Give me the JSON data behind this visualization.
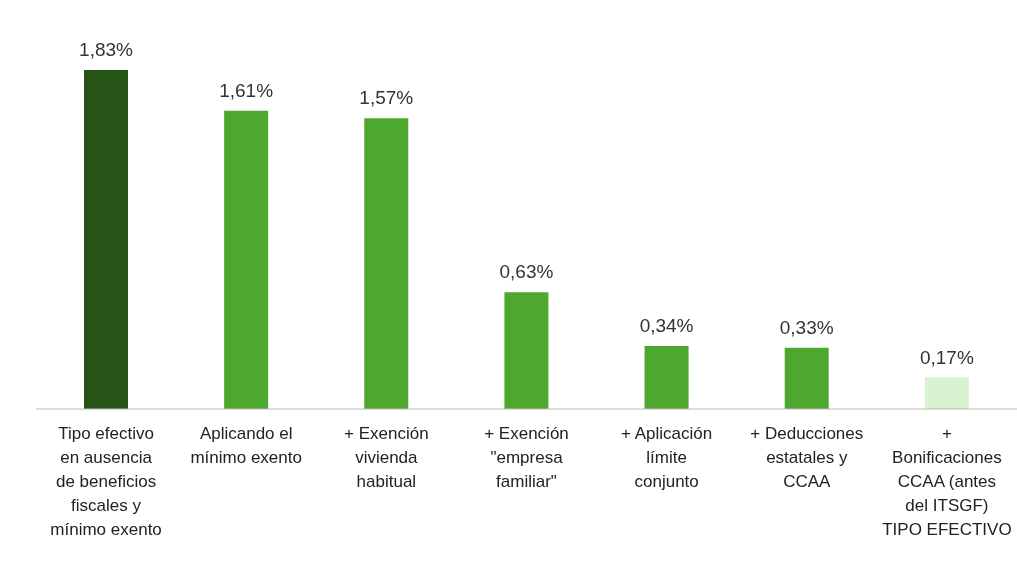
{
  "chart_data": {
    "type": "bar",
    "categories": [
      "Tipo efectivo en ausencia de beneficios fiscales y mínimo exento",
      "Aplicando el mínimo exento",
      "+ Exención vivienda habitual",
      "+ Exención \"empresa familiar\"",
      "+ Aplicación límite conjunto",
      "+ Deducciones estatales y CCAA",
      "+ Bonificaciones CCAA (antes del ITSGF) TIPO EFECTIVO"
    ],
    "values": [
      1.83,
      1.61,
      1.57,
      0.63,
      0.34,
      0.33,
      0.17
    ],
    "colors": [
      "#265418",
      "#4ea72e",
      "#4ea72e",
      "#4ea72e",
      "#4ea72e",
      "#4ea72e",
      "#d9f2d0"
    ],
    "value_labels": [
      "1,83%",
      "1,61%",
      "1,57%",
      "0,63%",
      "0,34%",
      "0,33%",
      "0,17%"
    ],
    "grid": false,
    "legend": false
  }
}
